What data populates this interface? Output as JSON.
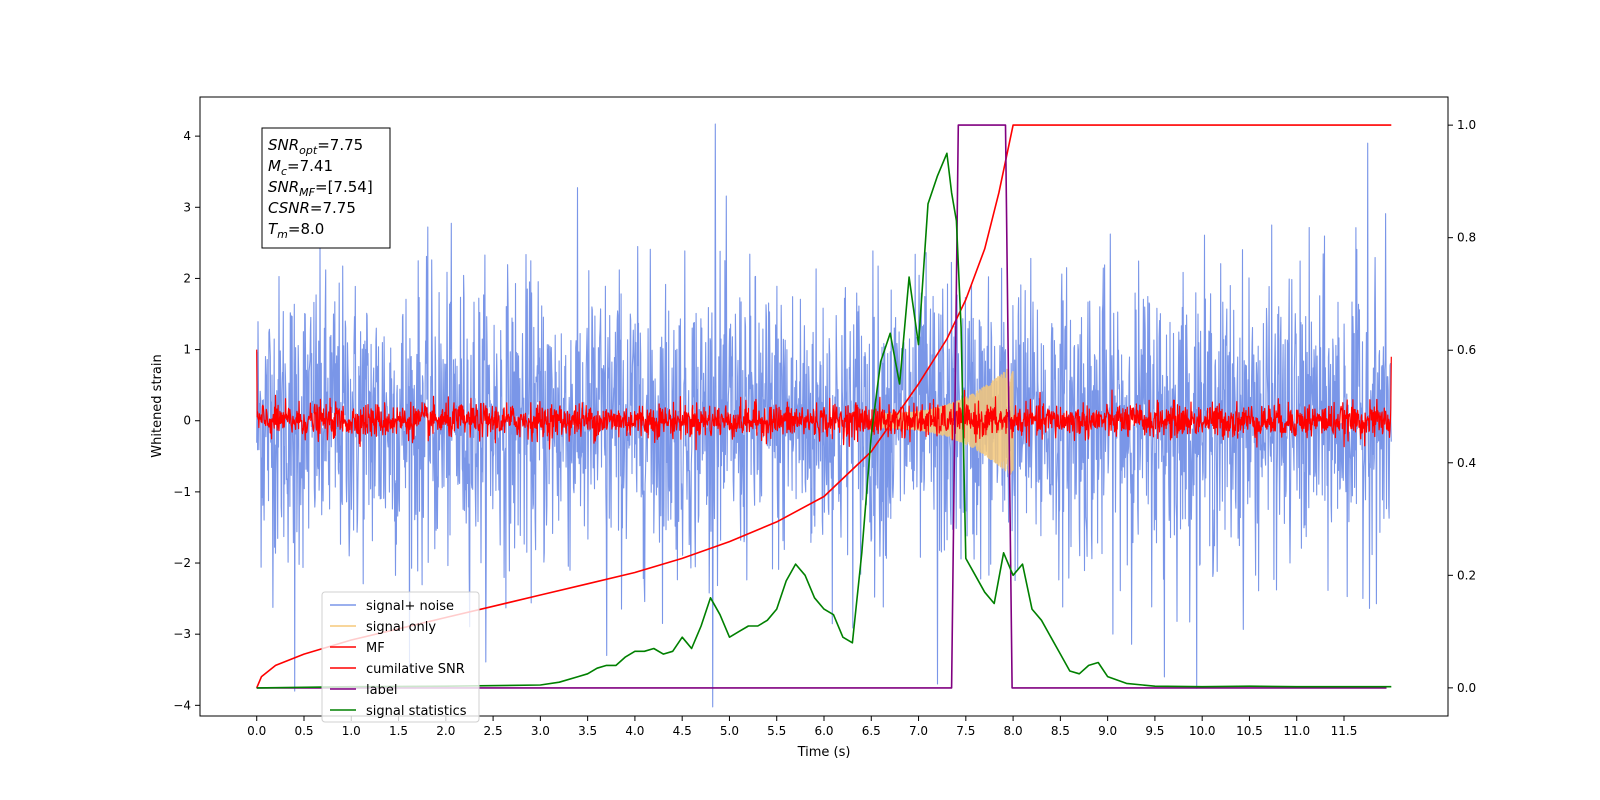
{
  "chart_data": {
    "type": "line",
    "title": "",
    "xlabel": "Time (s)",
    "ylabel": "Whitened strain",
    "y2label": "",
    "xlim": [
      -0.6,
      12.6
    ],
    "ylim": [
      -4.15,
      4.55
    ],
    "y2lim": [
      -0.05,
      1.05
    ],
    "x_ticks": [
      0.0,
      0.5,
      1.0,
      1.5,
      2.0,
      2.5,
      3.0,
      3.5,
      4.0,
      4.5,
      5.0,
      5.5,
      6.0,
      6.5,
      7.0,
      7.5,
      8.0,
      8.5,
      9.0,
      9.5,
      10.0,
      10.5,
      11.0,
      11.5
    ],
    "x_tick_labels": [
      "0.0",
      "0.5",
      "1.0",
      "1.5",
      "2.0",
      "2.5",
      "3.0",
      "3.5",
      "4.0",
      "4.5",
      "5.0",
      "5.5",
      "6.0",
      "6.5",
      "7.0",
      "7.5",
      "8.0",
      "8.5",
      "9.0",
      "9.5",
      "10.0",
      "10.5",
      "11.0",
      "11.5"
    ],
    "y_ticks": [
      -4,
      -3,
      -2,
      -1,
      0,
      1,
      2,
      3,
      4
    ],
    "y_tick_labels": [
      "−4",
      "−3",
      "−2",
      "−1",
      "0",
      "1",
      "2",
      "3",
      "4"
    ],
    "y2_ticks": [
      0.0,
      0.2,
      0.4,
      0.6,
      0.8,
      1.0
    ],
    "y2_tick_labels": [
      "0.0",
      "0.2",
      "0.4",
      "0.6",
      "0.8",
      "1.0"
    ],
    "grid": false,
    "legend_position": "lower-left",
    "annotation_lines": [
      {
        "sym": "SNR",
        "sub": "opt",
        "val": "=7.75"
      },
      {
        "sym": "M",
        "sub": "c",
        "val": "=7.41"
      },
      {
        "sym": "SNR",
        "sub": "MF",
        "val": "=[7.54]"
      },
      {
        "sym": "CSNR",
        "sub": "",
        "val": "=7.75"
      },
      {
        "sym": "T",
        "sub": "m",
        "val": "=8.0"
      }
    ],
    "series": [
      {
        "name": "signal+ noise",
        "axis": "left",
        "color": "#7a96e8",
        "style": "noise",
        "x_range": [
          0.0,
          12.0
        ],
        "amplitude_std": 1.0,
        "peak_spikes": [
          [
            0.4,
            -3.8
          ],
          [
            4.85,
            4.17
          ],
          [
            11.75,
            3.9
          ],
          [
            9.6,
            -3.6
          ],
          [
            3.7,
            -3.3
          ],
          [
            7.2,
            -3.7
          ]
        ]
      },
      {
        "name": "signal only",
        "axis": "left",
        "color": "#f5c87a",
        "style": "chirp",
        "x_range": [
          6.6,
          8.0
        ],
        "amplitude_range": [
          0.1,
          0.8
        ]
      },
      {
        "name": "MF",
        "axis": "left",
        "color": "#ff0000",
        "style": "noise",
        "x_range": [
          0.0,
          12.0
        ],
        "amplitude_std": 0.12,
        "edge_values": [
          1.0,
          0.9
        ]
      },
      {
        "name": "cumilative SNR",
        "axis": "right",
        "color": "#ff0000",
        "x": [
          0.0,
          0.05,
          0.2,
          0.5,
          1.0,
          1.5,
          2.0,
          2.5,
          3.0,
          3.5,
          4.0,
          4.5,
          5.0,
          5.5,
          6.0,
          6.5,
          7.0,
          7.3,
          7.5,
          7.7,
          7.85,
          8.0,
          12.0
        ],
        "values": [
          0.0,
          0.02,
          0.04,
          0.06,
          0.085,
          0.105,
          0.125,
          0.145,
          0.165,
          0.185,
          0.205,
          0.23,
          0.26,
          0.295,
          0.34,
          0.42,
          0.54,
          0.62,
          0.69,
          0.78,
          0.88,
          1.0,
          1.0
        ]
      },
      {
        "name": "label",
        "axis": "right",
        "color": "#800080",
        "x": [
          0.0,
          7.35,
          7.42,
          7.92,
          7.99,
          11.95
        ],
        "values": [
          0.0,
          0.0,
          1.0,
          1.0,
          0.0,
          0.0
        ]
      },
      {
        "name": "signal statistics",
        "axis": "right",
        "color": "#008000",
        "x": [
          0.0,
          1.0,
          2.0,
          3.0,
          3.2,
          3.4,
          3.5,
          3.6,
          3.7,
          3.8,
          3.9,
          4.0,
          4.1,
          4.2,
          4.3,
          4.4,
          4.5,
          4.55,
          4.6,
          4.7,
          4.8,
          4.9,
          5.0,
          5.1,
          5.2,
          5.3,
          5.4,
          5.5,
          5.6,
          5.7,
          5.8,
          5.9,
          6.0,
          6.1,
          6.2,
          6.3,
          6.4,
          6.5,
          6.6,
          6.7,
          6.8,
          6.9,
          7.0,
          7.1,
          7.2,
          7.3,
          7.35,
          7.4,
          7.45,
          7.5,
          7.6,
          7.7,
          7.8,
          7.9,
          8.0,
          8.1,
          8.2,
          8.3,
          8.4,
          8.5,
          8.6,
          8.7,
          8.8,
          8.9,
          9.0,
          9.2,
          9.5,
          10.0,
          10.5,
          11.0,
          11.5,
          12.0
        ],
        "values": [
          0.0,
          0.002,
          0.003,
          0.005,
          0.01,
          0.02,
          0.025,
          0.035,
          0.04,
          0.04,
          0.055,
          0.065,
          0.065,
          0.07,
          0.06,
          0.065,
          0.09,
          0.08,
          0.07,
          0.11,
          0.16,
          0.13,
          0.09,
          0.1,
          0.11,
          0.11,
          0.12,
          0.14,
          0.19,
          0.22,
          0.2,
          0.16,
          0.14,
          0.13,
          0.09,
          0.08,
          0.24,
          0.45,
          0.58,
          0.63,
          0.54,
          0.73,
          0.61,
          0.86,
          0.91,
          0.95,
          0.88,
          0.83,
          0.64,
          0.23,
          0.2,
          0.17,
          0.15,
          0.24,
          0.2,
          0.22,
          0.14,
          0.12,
          0.09,
          0.06,
          0.03,
          0.025,
          0.04,
          0.045,
          0.02,
          0.008,
          0.003,
          0.002,
          0.003,
          0.002,
          0.002,
          0.002
        ]
      }
    ]
  }
}
